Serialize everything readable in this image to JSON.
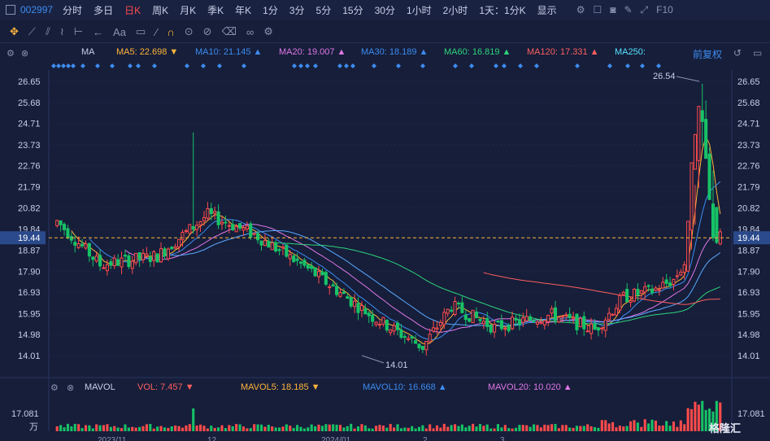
{
  "topbar": {
    "code": "002997",
    "periods": [
      "分时",
      "多日",
      "日K",
      "周K",
      "月K",
      "季K",
      "年K",
      "1分",
      "3分",
      "5分",
      "15分",
      "30分",
      "1小时",
      "2小时",
      "1天：1分K"
    ],
    "active_period": "日K",
    "display_label": "显示",
    "f10_label": "F10"
  },
  "toolbar": {
    "draw_label": "Aa"
  },
  "ma_legend": {
    "title": "MA",
    "items": [
      {
        "label": "MA5: 22.698",
        "arrow": "▼",
        "color": "#ffb43a"
      },
      {
        "label": "MA10: 21.145",
        "arrow": "▲",
        "color": "#3d8cf0"
      },
      {
        "label": "MA20: 19.007",
        "arrow": "▲",
        "color": "#e077e6"
      },
      {
        "label": "MA30: 18.189",
        "arrow": "▲",
        "color": "#3d8cf0"
      },
      {
        "label": "MA60: 16.819",
        "arrow": "▲",
        "color": "#2ed47a"
      },
      {
        "label": "MA120: 17.331",
        "arrow": "▲",
        "color": "#ff5f5f"
      },
      {
        "label": "MA250:",
        "arrow": "",
        "color": "#58e1ff"
      }
    ],
    "restore_label": "前复权"
  },
  "vol_legend": {
    "title": "MAVOL",
    "items": [
      {
        "label": "VOL: 7.457",
        "arrow": "▼",
        "color": "#ff5f5f"
      },
      {
        "label": "MAVOL5: 18.185",
        "arrow": "▼",
        "color": "#ffb43a"
      },
      {
        "label": "MAVOL10: 16.668",
        "arrow": "▲",
        "color": "#3d8cf0"
      },
      {
        "label": "MAVOL20: 10.020",
        "arrow": "▲",
        "color": "#e077e6"
      }
    ]
  },
  "chart_data": {
    "type": "candlestick",
    "y_ticks": [
      "26.65",
      "25.68",
      "24.71",
      "23.73",
      "22.76",
      "21.79",
      "20.82",
      "19.84",
      "18.87",
      "17.90",
      "16.93",
      "15.95",
      "14.98",
      "14.01"
    ],
    "ylim": [
      14.01,
      26.65
    ],
    "current_price": "19.44",
    "high_label": "26.54",
    "low_label": "14.01",
    "vol_tick": "17.081",
    "vol_unit": "万",
    "x_labels": [
      "2023/11",
      "12",
      "2024/01",
      "2",
      "3"
    ],
    "colors": {
      "up": "#ff4b4b",
      "down": "#17c267",
      "ma5": "#ffb43a",
      "ma10": "#3d8cf0",
      "ma20": "#e077e6",
      "ma30": "#3d8cf0",
      "ma60": "#2ed47a",
      "ma120": "#ff5f5f"
    }
  },
  "watermark": "格隆汇"
}
